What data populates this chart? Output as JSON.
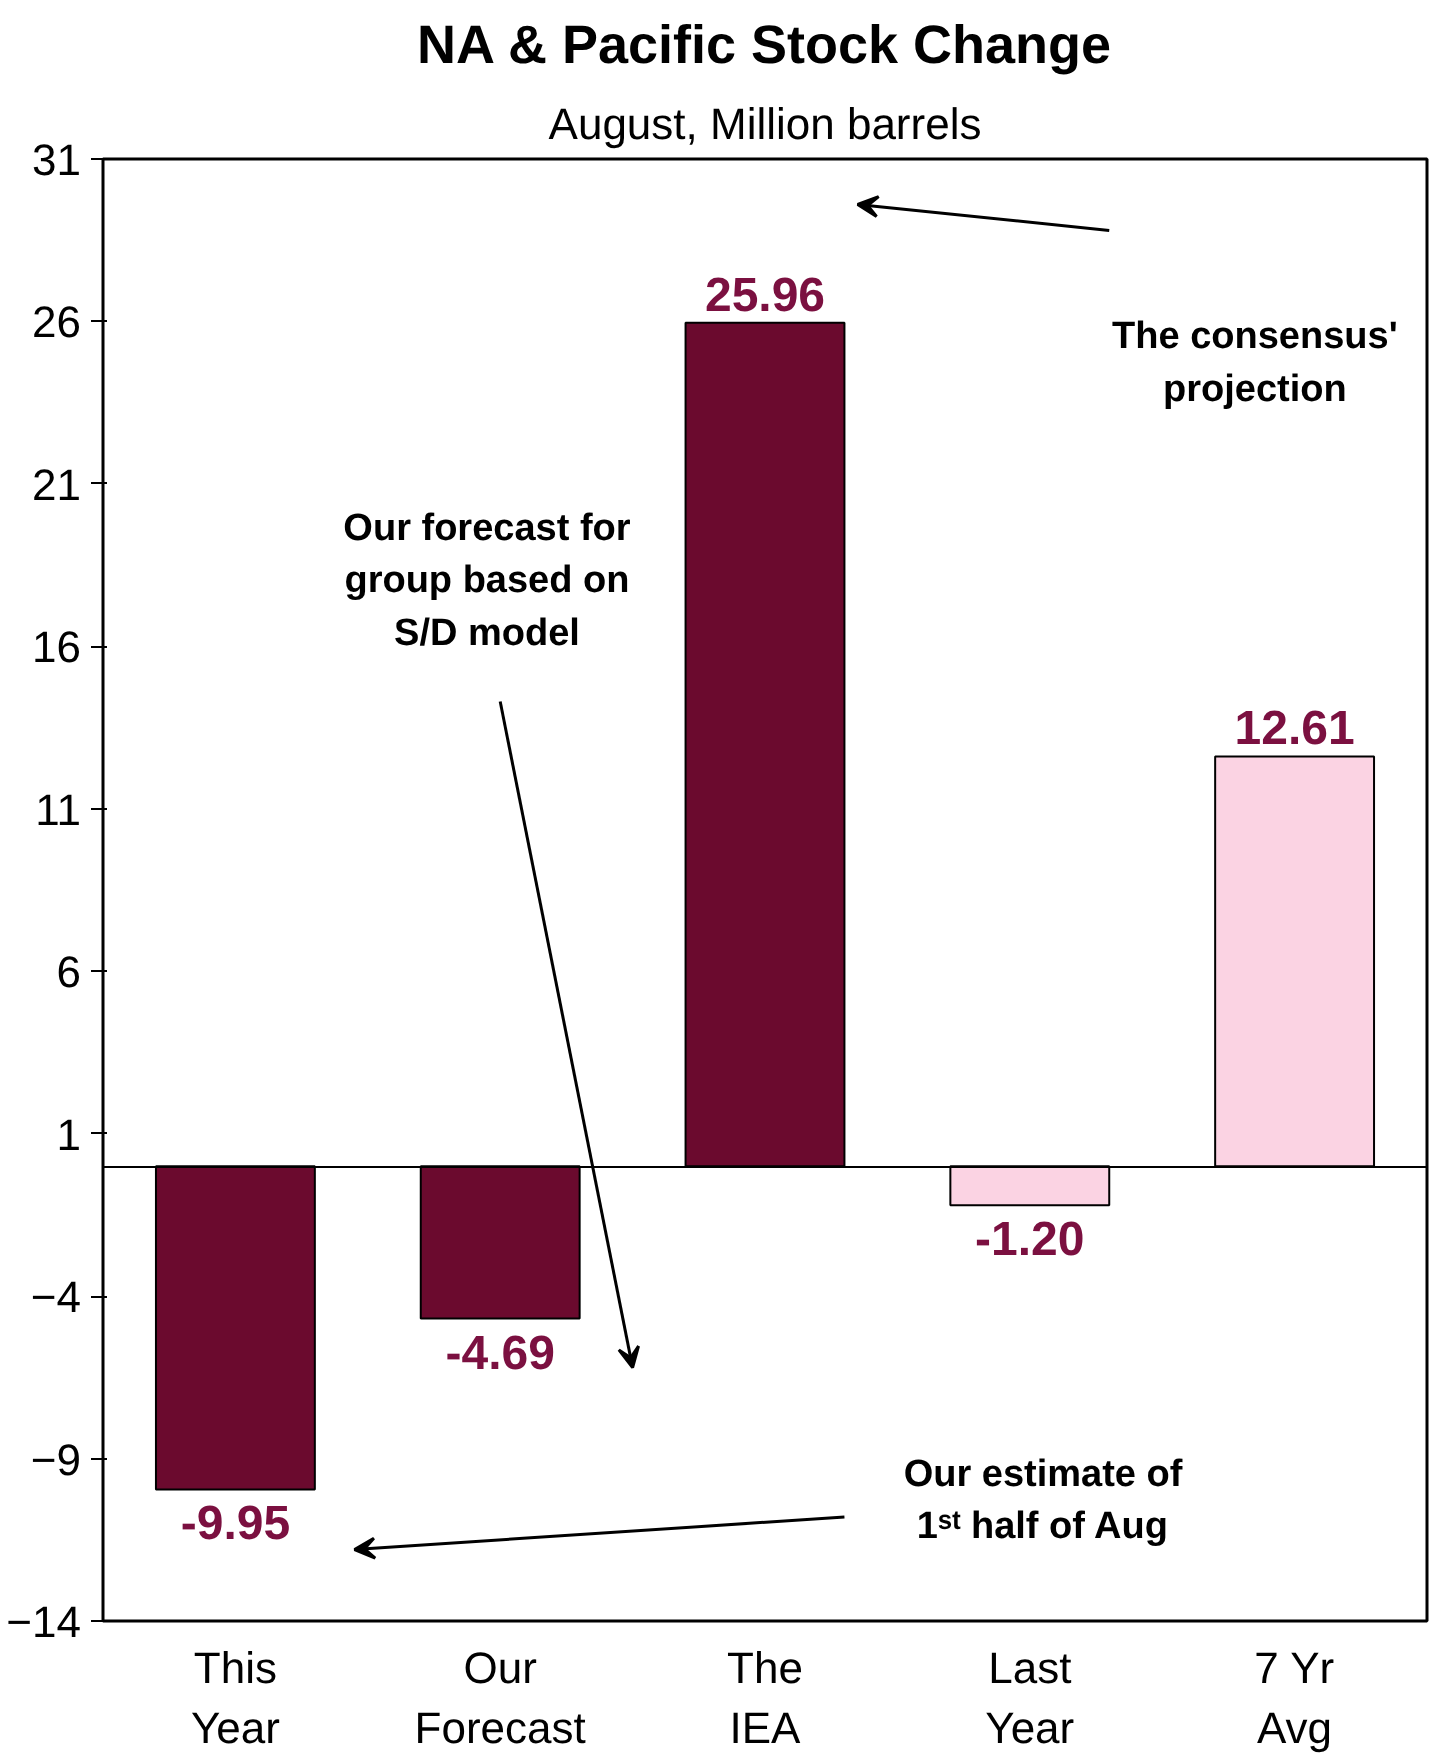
{
  "chart_data": {
    "type": "bar",
    "title": "NA & Pacific Stock Change",
    "subtitle": "August, Million barrels",
    "categories": [
      "This\nYear",
      "Our\nForecast",
      "The\nIEA",
      "Last\nYear",
      "7 Yr\nAvg"
    ],
    "values": [
      -9.95,
      -4.69,
      25.96,
      -1.2,
      12.61
    ],
    "colors": [
      "#6b0a2e",
      "#6b0a2e",
      "#6b0a2e",
      "#fbd3e3",
      "#fbd3e3"
    ],
    "ylim": [
      -14,
      31
    ],
    "yticks": [
      -14,
      -9,
      -4,
      1,
      6,
      11,
      16,
      21,
      26,
      31
    ],
    "value_labels": [
      "-9.95",
      "-4.69",
      "25.96",
      "-1.20",
      "12.61"
    ],
    "grid": false,
    "annotations": [
      "The consensus'\nprojection",
      "Our forecast for\ngroup based on\nS/D model",
      "Our estimate of\n1ˢᵗ half of Aug"
    ]
  }
}
